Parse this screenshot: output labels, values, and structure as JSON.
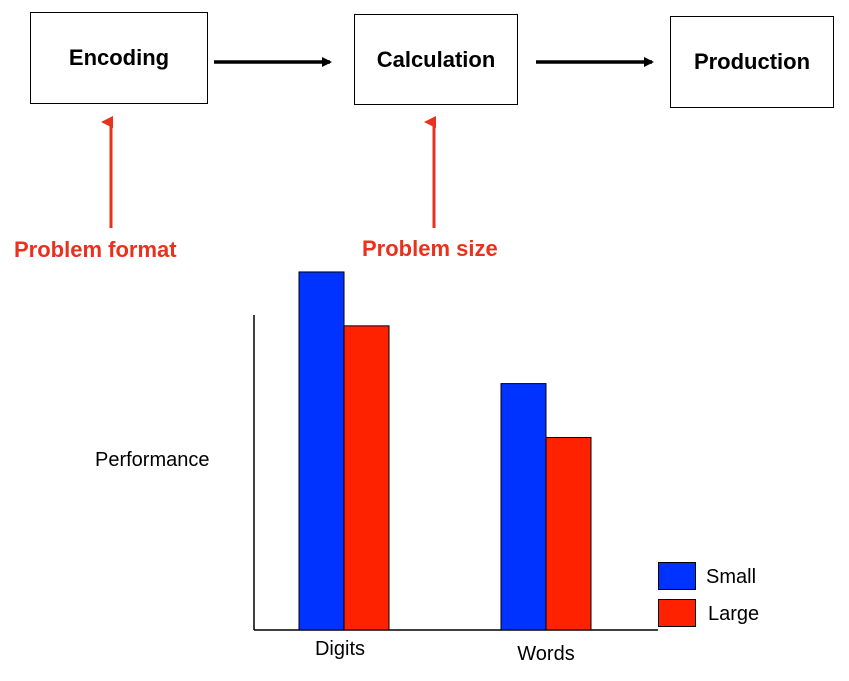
{
  "stages": [
    {
      "label": "Encoding"
    },
    {
      "label": "Calculation"
    },
    {
      "label": "Production"
    }
  ],
  "factors": [
    {
      "label": "Problem format",
      "affects": "Encoding"
    },
    {
      "label": "Problem size",
      "affects": "Calculation"
    }
  ],
  "colors": {
    "factor": "#e8321e",
    "small": "#0033ff",
    "large": "#ff2200"
  },
  "chart_data": {
    "type": "bar",
    "categories": [
      "Digits",
      "Words"
    ],
    "series": [
      {
        "name": "Small",
        "values": [
          93,
          64
        ]
      },
      {
        "name": "Large",
        "values": [
          79,
          50
        ]
      }
    ],
    "title": "",
    "xlabel": "",
    "ylabel": "Performance",
    "ylim": [
      0,
      100
    ],
    "legend": "bottom-right",
    "grid": false
  }
}
